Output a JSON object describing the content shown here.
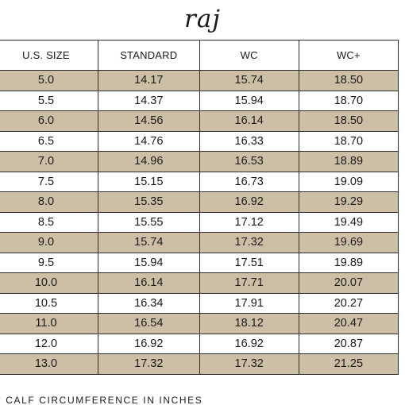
{
  "brand": "raj",
  "table": {
    "headers": [
      "U.S. SIZE",
      "STANDARD",
      "WC",
      "WC+"
    ],
    "rows": [
      [
        "5.0",
        "14.17",
        "15.74",
        "18.50"
      ],
      [
        "5.5",
        "14.37",
        "15.94",
        "18.70"
      ],
      [
        "6.0",
        "14.56",
        "16.14",
        "18.50"
      ],
      [
        "6.5",
        "14.76",
        "16.33",
        "18.70"
      ],
      [
        "7.0",
        "14.96",
        "16.53",
        "18.89"
      ],
      [
        "7.5",
        "15.15",
        "16.73",
        "19.09"
      ],
      [
        "8.0",
        "15.35",
        "16.92",
        "19.29"
      ],
      [
        "8.5",
        "15.55",
        "17.12",
        "19.49"
      ],
      [
        "9.0",
        "15.74",
        "17.32",
        "19.69"
      ],
      [
        "9.5",
        "15.94",
        "17.51",
        "19.89"
      ],
      [
        "10.0",
        "16.14",
        "17.71",
        "20.07"
      ],
      [
        "10.5",
        "16.34",
        "17.91",
        "20.27"
      ],
      [
        "11.0",
        "16.54",
        "18.12",
        "20.47"
      ],
      [
        "12.0",
        "16.92",
        "16.92",
        "20.87"
      ],
      [
        "13.0",
        "17.32",
        "17.32",
        "21.25"
      ]
    ]
  },
  "footnote": "* CALF CIRCUMFERENCE IN INCHES",
  "colors": {
    "shaded_row": "#cdbfa5",
    "plain_row": "#ffffff",
    "border": "#2a2a2a",
    "text": "#1a1a1a"
  }
}
